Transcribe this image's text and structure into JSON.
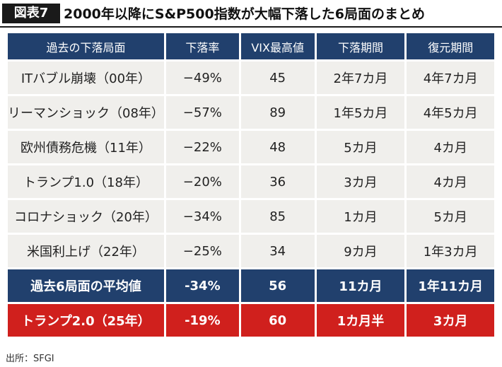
{
  "figure": {
    "badge": "図表7",
    "title": "2000年以降にS&P500指数が大幅下落した6局面のまとめ"
  },
  "table": {
    "headers": [
      "過去の下落局面",
      "下落率",
      "VIX最高値",
      "下落期間",
      "復元期間"
    ],
    "rows": [
      [
        "ITバブル崩壊（00年）",
        "−49%",
        "45",
        "2年7カ月",
        "4年7カ月"
      ],
      [
        "リーマンショック（08年）",
        "−57%",
        "89",
        "1年5カ月",
        "4年5カ月"
      ],
      [
        "欧州債務危機（11年）",
        "−22%",
        "48",
        "5カ月",
        "4カ月"
      ],
      [
        "トランプ1.0（18年）",
        "−20%",
        "36",
        "3カ月",
        "4カ月"
      ],
      [
        "コロナショック（20年）",
        "−34%",
        "85",
        "1カ月",
        "5カ月"
      ],
      [
        "米国利上げ（22年）",
        "−25%",
        "34",
        "9カ月",
        "1年3カ月"
      ]
    ],
    "average_row": [
      "過去6局面の平均値",
      "-34%",
      "56",
      "11カ月",
      "1年11カ月"
    ],
    "trump2_row": [
      "トランプ2.0（25年）",
      "-19%",
      "60",
      "1カ月半",
      "3カ月"
    ]
  },
  "source": "出所：SFGI",
  "colors": {
    "header_bg": "#21406d",
    "average_bg": "#21406d",
    "highlight_bg": "#d0201d",
    "row_bg": "#f0efec"
  }
}
